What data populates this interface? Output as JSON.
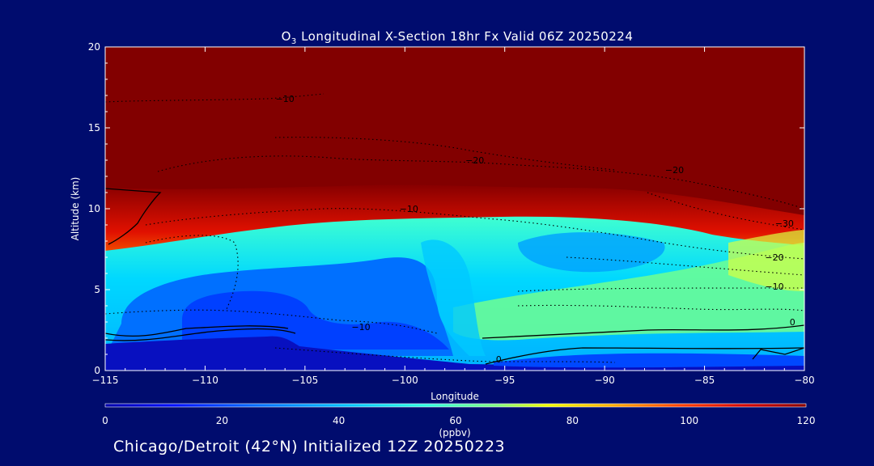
{
  "chart_data": {
    "type": "heatmap",
    "title_prefix": "O",
    "title_sub": "3",
    "title_rest": " Longitudinal X-Section 18hr  Fx Valid 06Z 20250224",
    "xlabel": "Longitude",
    "ylabel": "Altitude (km)",
    "xlim": [
      -115,
      -80
    ],
    "ylim": [
      0,
      20
    ],
    "xticks": [
      -115,
      -110,
      -105,
      -100,
      -95,
      -90,
      -85,
      -80
    ],
    "xtick_labels": [
      "−115",
      "−110",
      "−105",
      "−100",
      "−95",
      "−90",
      "−85",
      "−80"
    ],
    "yticks": [
      0,
      5,
      10,
      15,
      20
    ],
    "ytick_labels": [
      "0",
      "5",
      "10",
      "15",
      "20"
    ],
    "colorbar": {
      "min": 0,
      "max": 120,
      "unit": "(ppbv)",
      "ticks": [
        0,
        20,
        40,
        60,
        80,
        100,
        120
      ],
      "tick_labels": [
        "0",
        "20",
        "40",
        "60",
        "80",
        "100",
        "120"
      ]
    },
    "contour_labels": [
      {
        "text": "−10",
        "lon": -106,
        "alt": 16.6
      },
      {
        "text": "−20",
        "lon": -96.5,
        "alt": 12.8
      },
      {
        "text": "−20",
        "lon": -86.5,
        "alt": 12.2
      },
      {
        "text": "−10",
        "lon": -99.8,
        "alt": 9.8
      },
      {
        "text": "−30",
        "lon": -81,
        "alt": 8.9
      },
      {
        "text": "−20",
        "lon": -81.5,
        "alt": 6.8
      },
      {
        "text": "−10",
        "lon": -81.5,
        "alt": 5.0
      },
      {
        "text": "0",
        "lon": -80.6,
        "alt": 2.8
      },
      {
        "text": "−10",
        "lon": -102.2,
        "alt": 2.5
      },
      {
        "text": "0",
        "lon": -95.3,
        "alt": 0.5
      }
    ],
    "colors": {
      "background": "#000c6e",
      "ground": "#0810c0",
      "stratosphere": "#820000",
      "contour": "#000000"
    }
  },
  "footer": {
    "initialized_text": "Chicago/Detroit (42°N) Initialized 12Z 20250223"
  }
}
